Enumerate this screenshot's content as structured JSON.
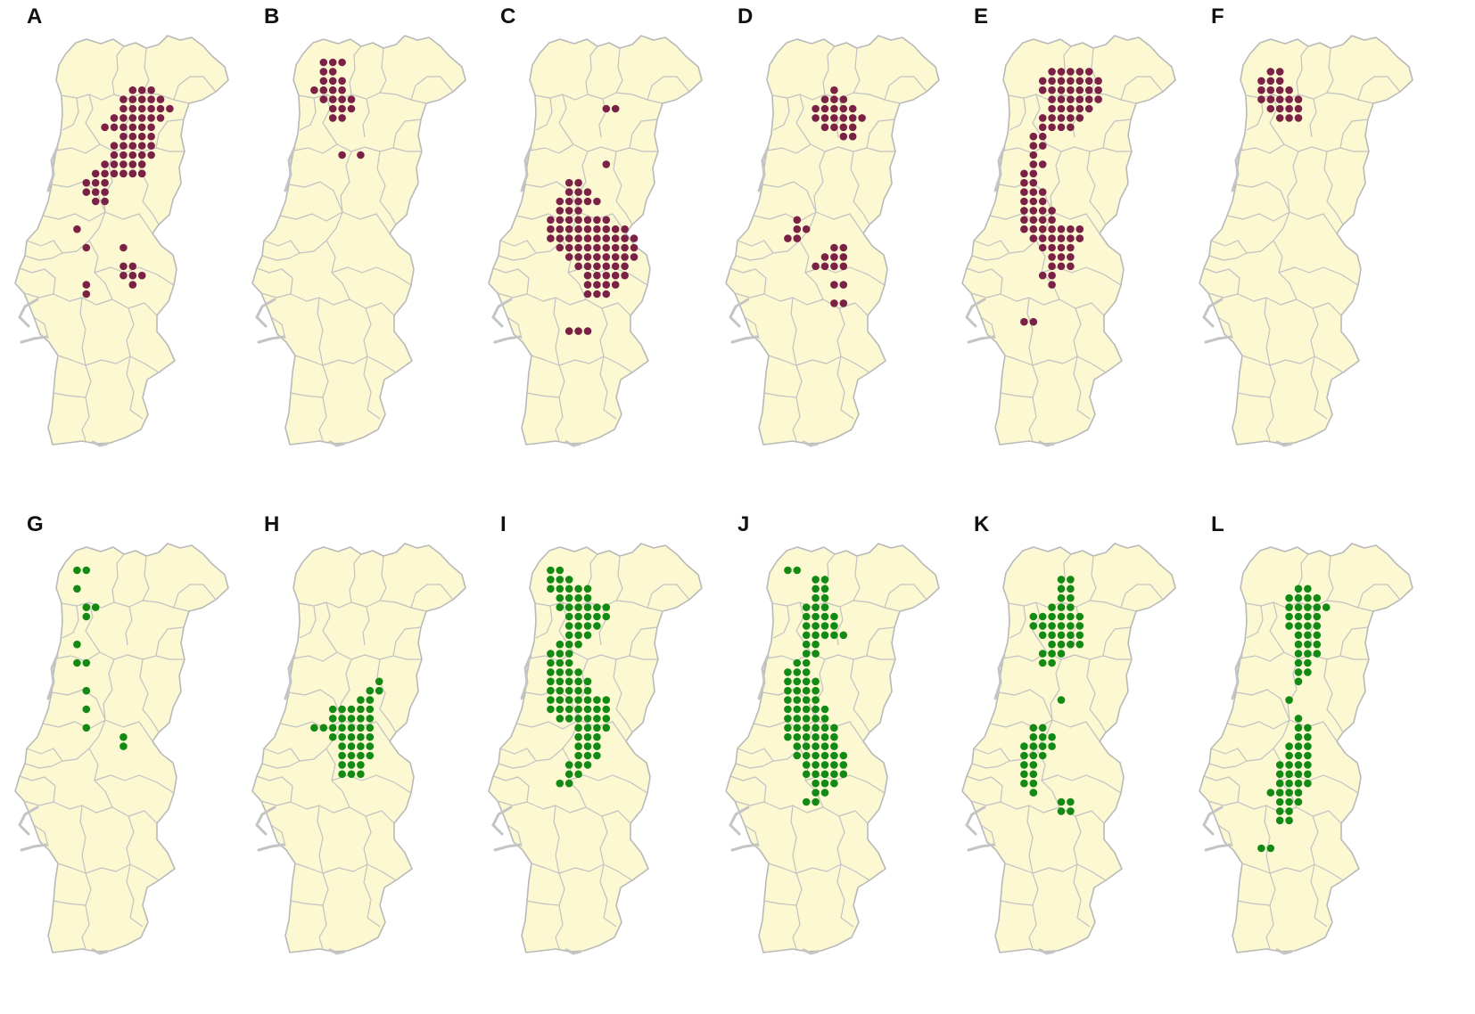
{
  "figure": {
    "colors": {
      "land": "#fbf8d2",
      "border": "#b9b9b9",
      "top_row_dots": "#7b2145",
      "bottom_row_dots": "#138a13",
      "label": "#111111"
    },
    "panels": [
      {
        "label": "A",
        "row": 0,
        "dot_color": "#7b2145",
        "range": [
          [
            3,
            6,
            8
          ],
          [
            4,
            5,
            9
          ],
          [
            5,
            5,
            10
          ],
          [
            6,
            4,
            9
          ],
          [
            7,
            3,
            8
          ],
          [
            8,
            5,
            8
          ],
          [
            9,
            4,
            8
          ],
          [
            10,
            4,
            8
          ],
          [
            11,
            3,
            7
          ],
          [
            12,
            2,
            7
          ],
          [
            13,
            1,
            3
          ],
          [
            14,
            1,
            3
          ],
          [
            15,
            2,
            3
          ],
          [
            12,
            5,
            7
          ],
          [
            18,
            0,
            0
          ],
          [
            20,
            1,
            1
          ],
          [
            20,
            5,
            5
          ],
          [
            22,
            5,
            6
          ],
          [
            23,
            5,
            7
          ],
          [
            24,
            6,
            6
          ],
          [
            24,
            1,
            1
          ],
          [
            25,
            1,
            1
          ]
        ]
      },
      {
        "label": "B",
        "row": 0,
        "dot_color": "#7b2145",
        "range": [
          [
            0,
            1,
            3
          ],
          [
            1,
            1,
            2
          ],
          [
            2,
            1,
            3
          ],
          [
            3,
            0,
            3
          ],
          [
            4,
            1,
            4
          ],
          [
            5,
            2,
            4
          ],
          [
            6,
            2,
            3
          ],
          [
            10,
            3,
            3
          ],
          [
            10,
            5,
            5
          ]
        ]
      },
      {
        "label": "C",
        "row": 0,
        "dot_color": "#7b2145",
        "range": [
          [
            5,
            6,
            7
          ],
          [
            11,
            6,
            6
          ],
          [
            13,
            2,
            3
          ],
          [
            14,
            2,
            4
          ],
          [
            15,
            1,
            5
          ],
          [
            16,
            1,
            3
          ],
          [
            17,
            0,
            6
          ],
          [
            18,
            0,
            8
          ],
          [
            19,
            0,
            9
          ],
          [
            20,
            1,
            9
          ],
          [
            21,
            2,
            9
          ],
          [
            22,
            3,
            8
          ],
          [
            23,
            4,
            8
          ],
          [
            24,
            4,
            7
          ],
          [
            25,
            4,
            6
          ],
          [
            29,
            2,
            4
          ]
        ]
      },
      {
        "label": "D",
        "row": 0,
        "dot_color": "#7b2145",
        "range": [
          [
            3,
            5,
            5
          ],
          [
            4,
            4,
            6
          ],
          [
            5,
            3,
            7
          ],
          [
            6,
            3,
            8
          ],
          [
            7,
            4,
            7
          ],
          [
            8,
            6,
            7
          ],
          [
            17,
            1,
            1
          ],
          [
            18,
            1,
            2
          ],
          [
            19,
            0,
            1
          ],
          [
            20,
            5,
            6
          ],
          [
            21,
            4,
            6
          ],
          [
            22,
            3,
            5
          ],
          [
            22,
            6,
            6
          ],
          [
            24,
            5,
            6
          ],
          [
            26,
            5,
            6
          ]
        ]
      },
      {
        "label": "E",
        "row": 0,
        "dot_color": "#7b2145",
        "range": [
          [
            1,
            3,
            7
          ],
          [
            2,
            2,
            8
          ],
          [
            3,
            2,
            8
          ],
          [
            4,
            3,
            8
          ],
          [
            5,
            3,
            7
          ],
          [
            6,
            2,
            6
          ],
          [
            7,
            2,
            5
          ],
          [
            8,
            1,
            2
          ],
          [
            9,
            1,
            2
          ],
          [
            10,
            1,
            1
          ],
          [
            11,
            1,
            2
          ],
          [
            12,
            0,
            1
          ],
          [
            13,
            0,
            1
          ],
          [
            14,
            0,
            2
          ],
          [
            15,
            0,
            2
          ],
          [
            16,
            0,
            3
          ],
          [
            17,
            0,
            3
          ],
          [
            18,
            0,
            6
          ],
          [
            19,
            1,
            6
          ],
          [
            20,
            2,
            5
          ],
          [
            21,
            3,
            5
          ],
          [
            22,
            3,
            5
          ],
          [
            23,
            2,
            3
          ],
          [
            24,
            3,
            3
          ],
          [
            28,
            0,
            1
          ]
        ]
      },
      {
        "label": "F",
        "row": 0,
        "dot_color": "#7b2145",
        "range": [
          [
            1,
            1,
            2
          ],
          [
            2,
            0,
            2
          ],
          [
            3,
            0,
            3
          ],
          [
            4,
            0,
            4
          ],
          [
            5,
            1,
            4
          ],
          [
            6,
            2,
            4
          ]
        ]
      },
      {
        "label": "G",
        "row": 1,
        "dot_color": "#138a13",
        "range": [
          [
            0,
            0,
            1
          ],
          [
            2,
            0,
            0
          ],
          [
            4,
            1,
            2
          ],
          [
            5,
            1,
            1
          ],
          [
            8,
            0,
            0
          ],
          [
            10,
            0,
            1
          ],
          [
            13,
            1,
            1
          ],
          [
            15,
            1,
            1
          ],
          [
            17,
            1,
            1
          ],
          [
            18,
            5,
            5
          ],
          [
            19,
            5,
            5
          ]
        ]
      },
      {
        "label": "H",
        "row": 1,
        "dot_color": "#138a13",
        "range": [
          [
            12,
            7,
            7
          ],
          [
            13,
            6,
            7
          ],
          [
            14,
            5,
            6
          ],
          [
            15,
            2,
            6
          ],
          [
            16,
            2,
            6
          ],
          [
            17,
            0,
            6
          ],
          [
            18,
            2,
            6
          ],
          [
            19,
            3,
            6
          ],
          [
            20,
            3,
            6
          ],
          [
            21,
            3,
            5
          ],
          [
            22,
            3,
            5
          ]
        ]
      },
      {
        "label": "I",
        "row": 1,
        "dot_color": "#138a13",
        "range": [
          [
            0,
            0,
            1
          ],
          [
            1,
            0,
            2
          ],
          [
            2,
            0,
            4
          ],
          [
            3,
            1,
            4
          ],
          [
            4,
            1,
            6
          ],
          [
            5,
            2,
            6
          ],
          [
            6,
            2,
            5
          ],
          [
            7,
            2,
            4
          ],
          [
            8,
            1,
            3
          ],
          [
            9,
            0,
            2
          ],
          [
            10,
            0,
            2
          ],
          [
            11,
            0,
            3
          ],
          [
            12,
            0,
            4
          ],
          [
            13,
            0,
            4
          ],
          [
            14,
            0,
            6
          ],
          [
            15,
            0,
            6
          ],
          [
            16,
            1,
            6
          ],
          [
            17,
            3,
            6
          ],
          [
            18,
            3,
            5
          ],
          [
            19,
            3,
            5
          ],
          [
            20,
            3,
            5
          ],
          [
            21,
            2,
            4
          ],
          [
            22,
            2,
            3
          ],
          [
            23,
            1,
            2
          ]
        ]
      },
      {
        "label": "J",
        "row": 1,
        "dot_color": "#138a13",
        "range": [
          [
            0,
            0,
            1
          ],
          [
            1,
            3,
            4
          ],
          [
            2,
            3,
            4
          ],
          [
            3,
            3,
            4
          ],
          [
            4,
            2,
            4
          ],
          [
            5,
            2,
            5
          ],
          [
            6,
            2,
            5
          ],
          [
            7,
            2,
            6
          ],
          [
            8,
            2,
            3
          ],
          [
            9,
            2,
            3
          ],
          [
            10,
            1,
            2
          ],
          [
            11,
            0,
            2
          ],
          [
            12,
            0,
            3
          ],
          [
            13,
            0,
            3
          ],
          [
            14,
            0,
            3
          ],
          [
            15,
            0,
            4
          ],
          [
            16,
            0,
            4
          ],
          [
            17,
            0,
            5
          ],
          [
            18,
            0,
            5
          ],
          [
            19,
            1,
            5
          ],
          [
            20,
            1,
            6
          ],
          [
            21,
            2,
            6
          ],
          [
            22,
            2,
            6
          ],
          [
            23,
            3,
            5
          ],
          [
            24,
            3,
            4
          ],
          [
            25,
            2,
            3
          ]
        ]
      },
      {
        "label": "K",
        "row": 1,
        "dot_color": "#138a13",
        "range": [
          [
            1,
            4,
            5
          ],
          [
            2,
            4,
            5
          ],
          [
            3,
            4,
            5
          ],
          [
            4,
            3,
            5
          ],
          [
            5,
            1,
            6
          ],
          [
            6,
            1,
            6
          ],
          [
            7,
            2,
            6
          ],
          [
            8,
            3,
            6
          ],
          [
            9,
            2,
            4
          ],
          [
            10,
            2,
            3
          ],
          [
            14,
            4,
            4
          ],
          [
            17,
            1,
            2
          ],
          [
            18,
            1,
            3
          ],
          [
            19,
            0,
            3
          ],
          [
            20,
            0,
            2
          ],
          [
            21,
            0,
            1
          ],
          [
            22,
            0,
            1
          ],
          [
            23,
            0,
            1
          ],
          [
            24,
            1,
            1
          ],
          [
            25,
            4,
            5
          ],
          [
            26,
            4,
            5
          ]
        ]
      },
      {
        "label": "L",
        "row": 1,
        "dot_color": "#138a13",
        "range": [
          [
            2,
            4,
            5
          ],
          [
            3,
            3,
            6
          ],
          [
            4,
            3,
            7
          ],
          [
            5,
            3,
            6
          ],
          [
            6,
            3,
            6
          ],
          [
            7,
            4,
            6
          ],
          [
            8,
            4,
            6
          ],
          [
            9,
            4,
            6
          ],
          [
            10,
            4,
            5
          ],
          [
            11,
            4,
            5
          ],
          [
            12,
            4,
            4
          ],
          [
            14,
            3,
            3
          ],
          [
            16,
            4,
            4
          ],
          [
            17,
            4,
            5
          ],
          [
            18,
            4,
            5
          ],
          [
            19,
            3,
            5
          ],
          [
            20,
            3,
            5
          ],
          [
            21,
            2,
            5
          ],
          [
            22,
            2,
            5
          ],
          [
            23,
            2,
            5
          ],
          [
            24,
            1,
            4
          ],
          [
            25,
            2,
            4
          ],
          [
            26,
            2,
            3
          ],
          [
            27,
            2,
            3
          ],
          [
            30,
            0,
            1
          ]
        ]
      }
    ]
  }
}
